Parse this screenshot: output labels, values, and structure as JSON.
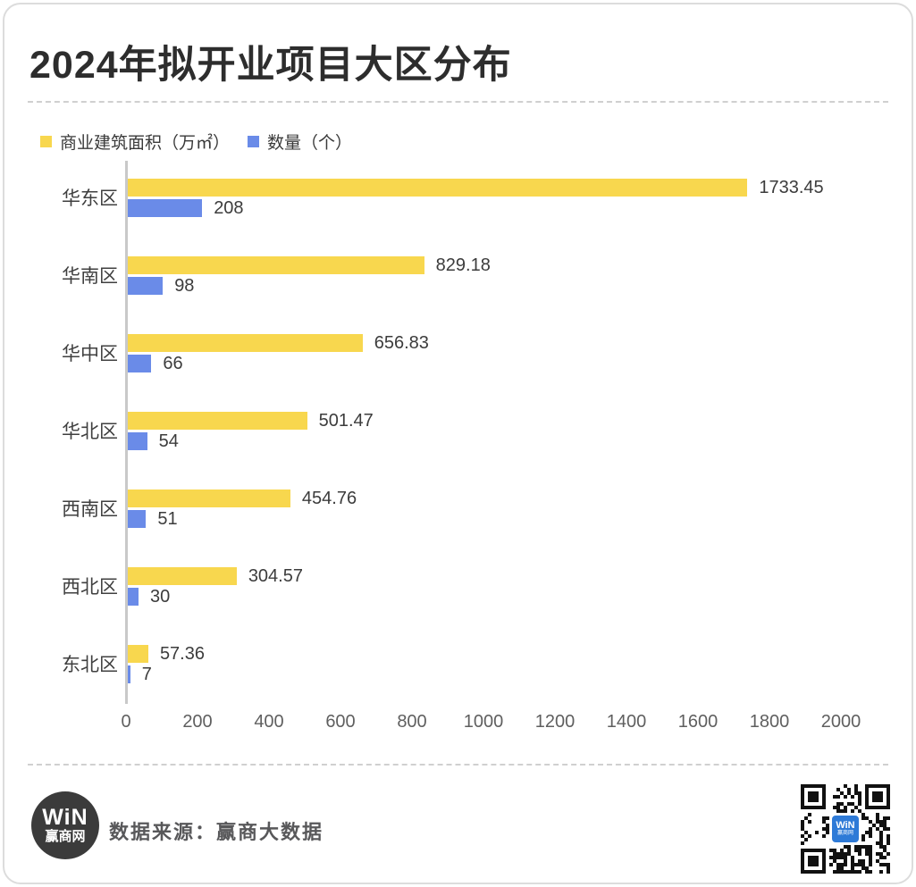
{
  "header": {
    "title": "2024年拟开业项目大区分布"
  },
  "chart_data": {
    "type": "bar",
    "orientation": "horizontal",
    "title": "2024年拟开业项目大区分布",
    "categories": [
      "华东区",
      "华南区",
      "华中区",
      "华北区",
      "西南区",
      "西北区",
      "东北区"
    ],
    "series": [
      {
        "name": "商业建筑面积（万㎡）",
        "color": "#F8D74E",
        "values": [
          1733.45,
          829.18,
          656.83,
          501.47,
          454.76,
          304.57,
          57.36
        ],
        "labels": [
          "1733.45",
          "829.18",
          "656.83",
          "501.47",
          "454.76",
          "304.57",
          "57.36"
        ]
      },
      {
        "name": "数量（个）",
        "color": "#6A8BE8",
        "values": [
          208,
          98,
          66,
          54,
          51,
          30,
          7
        ],
        "labels": [
          "208",
          "98",
          "66",
          "54",
          "51",
          "30",
          "7"
        ]
      }
    ],
    "xlim": [
      0,
      2000
    ],
    "x_ticks": [
      "0",
      "200",
      "400",
      "600",
      "800",
      "1000",
      "1200",
      "1400",
      "1600",
      "1800",
      "2000"
    ],
    "grid": false,
    "legend_position": "top-left",
    "value_labels": "outside-end"
  },
  "footer": {
    "source_label": "数据来源：赢商大数据",
    "logo": {
      "line1": "WiN",
      "line2": "赢商网"
    },
    "qr": {
      "center_line1": "WiN",
      "center_line2": "赢商网"
    }
  },
  "colors": {
    "area_series": "#F8D74E",
    "count_series": "#6A8BE8",
    "axis_line": "#c9c9c9",
    "dashed_divider": "#d0d0d0",
    "card_border": "#dcdcdc",
    "title_text": "#2d2d2d",
    "qr_badge_blue": "#2E7AD7",
    "logo_circle": "#3b3b3b"
  }
}
